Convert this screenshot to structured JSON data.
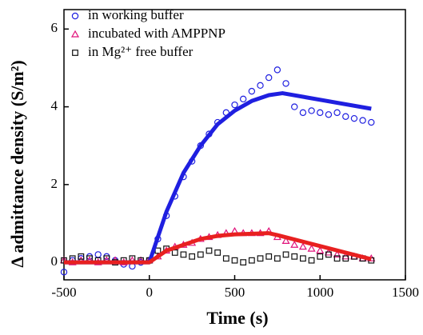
{
  "chart_data": {
    "type": "scatter",
    "xlabel": "Time (s)",
    "ylabel": "Δ admittance density (S/m²)",
    "xlim": [
      -500,
      1500
    ],
    "ylim": [
      -0.45,
      6.5
    ],
    "xticks": [
      -500,
      0,
      500,
      1000,
      1500
    ],
    "yticks": [
      0,
      2,
      4,
      6
    ],
    "legend": "upper left",
    "x": [
      -500,
      -450,
      -400,
      -350,
      -300,
      -250,
      -200,
      -150,
      -100,
      -50,
      0,
      50,
      100,
      150,
      200,
      250,
      300,
      350,
      400,
      450,
      500,
      550,
      600,
      650,
      700,
      750,
      800,
      850,
      900,
      950,
      1000,
      1050,
      1100,
      1150,
      1200,
      1250,
      1300
    ],
    "series": [
      {
        "name": "in working buffer",
        "color": "#1f1fe0",
        "marker": "circle",
        "values": [
          -0.25,
          0.05,
          0.1,
          0.15,
          0.2,
          0.15,
          0.05,
          -0.05,
          -0.1,
          0,
          0.05,
          0.6,
          1.2,
          1.7,
          2.2,
          2.6,
          3.0,
          3.3,
          3.6,
          3.85,
          4.05,
          4.2,
          4.4,
          4.55,
          4.75,
          4.95,
          4.6,
          4.0,
          3.85,
          3.9,
          3.85,
          3.8,
          3.85,
          3.75,
          3.7,
          3.65,
          3.6
        ]
      },
      {
        "name": "incubated with AMPPNP",
        "color": "#e0107a",
        "marker": "triangle",
        "values": [
          0.05,
          0.0,
          0.05,
          0.05,
          0.0,
          0.05,
          0.05,
          0.0,
          0.05,
          0.05,
          0.05,
          0.15,
          0.3,
          0.4,
          0.45,
          0.5,
          0.6,
          0.65,
          0.7,
          0.75,
          0.8,
          0.75,
          0.75,
          0.75,
          0.8,
          0.65,
          0.55,
          0.45,
          0.4,
          0.35,
          0.3,
          0.25,
          0.2,
          0.15,
          0.15,
          0.1,
          0.1
        ]
      },
      {
        "name": "in Mg²⁺ free buffer",
        "color": "#111111",
        "marker": "square",
        "values": [
          0.05,
          0.1,
          0.15,
          0.1,
          0.05,
          0.1,
          0.0,
          0.05,
          0.1,
          0.05,
          0.05,
          0.3,
          0.35,
          0.25,
          0.2,
          0.15,
          0.2,
          0.3,
          0.25,
          0.1,
          0.05,
          0.0,
          0.05,
          0.1,
          0.15,
          0.1,
          0.2,
          0.15,
          0.1,
          0.05,
          0.15,
          0.2,
          0.1,
          0.1,
          0.15,
          0.1,
          0.05
        ]
      }
    ],
    "fits": [
      {
        "color": "#1f1fe0",
        "x": [
          -500,
          0,
          100,
          200,
          300,
          400,
          500,
          600,
          700,
          780,
          1300
        ],
        "values": [
          0,
          0,
          1.3,
          2.3,
          3.0,
          3.55,
          3.9,
          4.15,
          4.3,
          4.35,
          3.95
        ]
      },
      {
        "color": "#e82020",
        "x": [
          -500,
          0,
          100,
          200,
          300,
          400,
          500,
          700,
          750,
          1300
        ],
        "values": [
          0,
          0,
          0.3,
          0.45,
          0.6,
          0.68,
          0.72,
          0.75,
          0.7,
          0.08
        ]
      }
    ]
  }
}
